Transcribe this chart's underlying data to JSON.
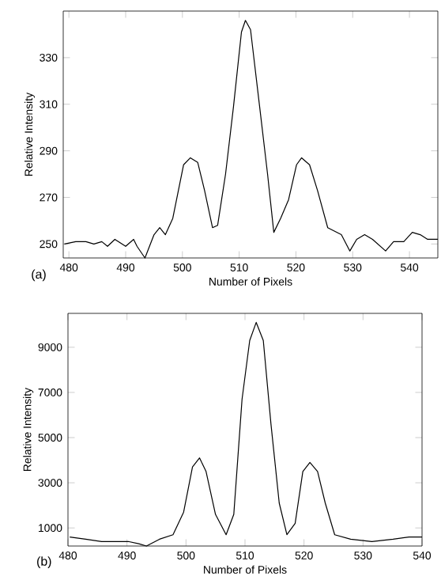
{
  "chart_data": [
    {
      "type": "line",
      "xlabel": "Number of Pixels",
      "ylabel": "Relative Intensity",
      "annotations": [
        "(a)"
      ],
      "xlim": [
        479,
        545
      ],
      "ylim": [
        244,
        350
      ],
      "xticks": [
        480,
        490,
        500,
        510,
        520,
        530,
        540
      ],
      "yticks": [
        250,
        270,
        290,
        310,
        330
      ],
      "series": [
        {
          "color": "#000000",
          "x": [
            479.2,
            481.2,
            483,
            484.4,
            485.8,
            486.8,
            488.1,
            490,
            491.4,
            492,
            493.4,
            495,
            496,
            497,
            498.3,
            500.2,
            501.4,
            502.7,
            503.9,
            505.3,
            506.2,
            507.6,
            509,
            510.4,
            511.1,
            512,
            513.6,
            515,
            516.1,
            517.3,
            518.7,
            520.1,
            521,
            522.4,
            523.8,
            525.6,
            528,
            529.5,
            530.7,
            532.1,
            533.5,
            535.8,
            537.2,
            539,
            540.5,
            541.9,
            543.2,
            545
          ],
          "values": [
            250,
            251,
            251,
            250,
            251,
            249,
            252,
            249,
            252,
            249,
            244,
            254,
            257,
            254,
            261,
            284,
            287,
            285,
            273,
            257,
            258,
            280,
            309,
            341,
            346,
            342,
            309,
            280,
            255,
            261,
            269,
            284,
            287,
            284,
            273,
            257,
            254,
            247,
            252,
            254,
            252,
            247,
            251,
            251,
            255,
            254,
            252,
            252
          ]
        }
      ]
    },
    {
      "type": "line",
      "xlabel": "Number of Pixels",
      "ylabel": "Relative Intensity",
      "annotations": [
        "(b)"
      ],
      "xlim": [
        480,
        540
      ],
      "ylim": [
        200,
        10500
      ],
      "xticks": [
        480,
        490,
        500,
        510,
        520,
        530,
        540
      ],
      "yticks": [
        1000,
        3000,
        5000,
        7000,
        9000
      ],
      "series": [
        {
          "color": "#000000",
          "x": [
            480.3,
            483,
            485.7,
            488.4,
            490.2,
            492,
            493.3,
            495.5,
            497.8,
            499.6,
            501.1,
            502.3,
            503.4,
            505,
            506.8,
            508.1,
            509.5,
            510.8,
            511.9,
            513.1,
            514.4,
            515.8,
            517.1,
            518.5,
            519.8,
            521,
            522.3,
            523.6,
            525.2,
            527.9,
            531.5,
            535.1,
            537.8,
            540
          ],
          "values": [
            600,
            500,
            400,
            400,
            400,
            300,
            200,
            500,
            700,
            1700,
            3700,
            4100,
            3500,
            1600,
            700,
            1600,
            6700,
            9300,
            10100,
            9300,
            5600,
            2100,
            700,
            1200,
            3500,
            3900,
            3500,
            2100,
            700,
            500,
            400,
            500,
            600,
            600
          ]
        }
      ]
    }
  ]
}
